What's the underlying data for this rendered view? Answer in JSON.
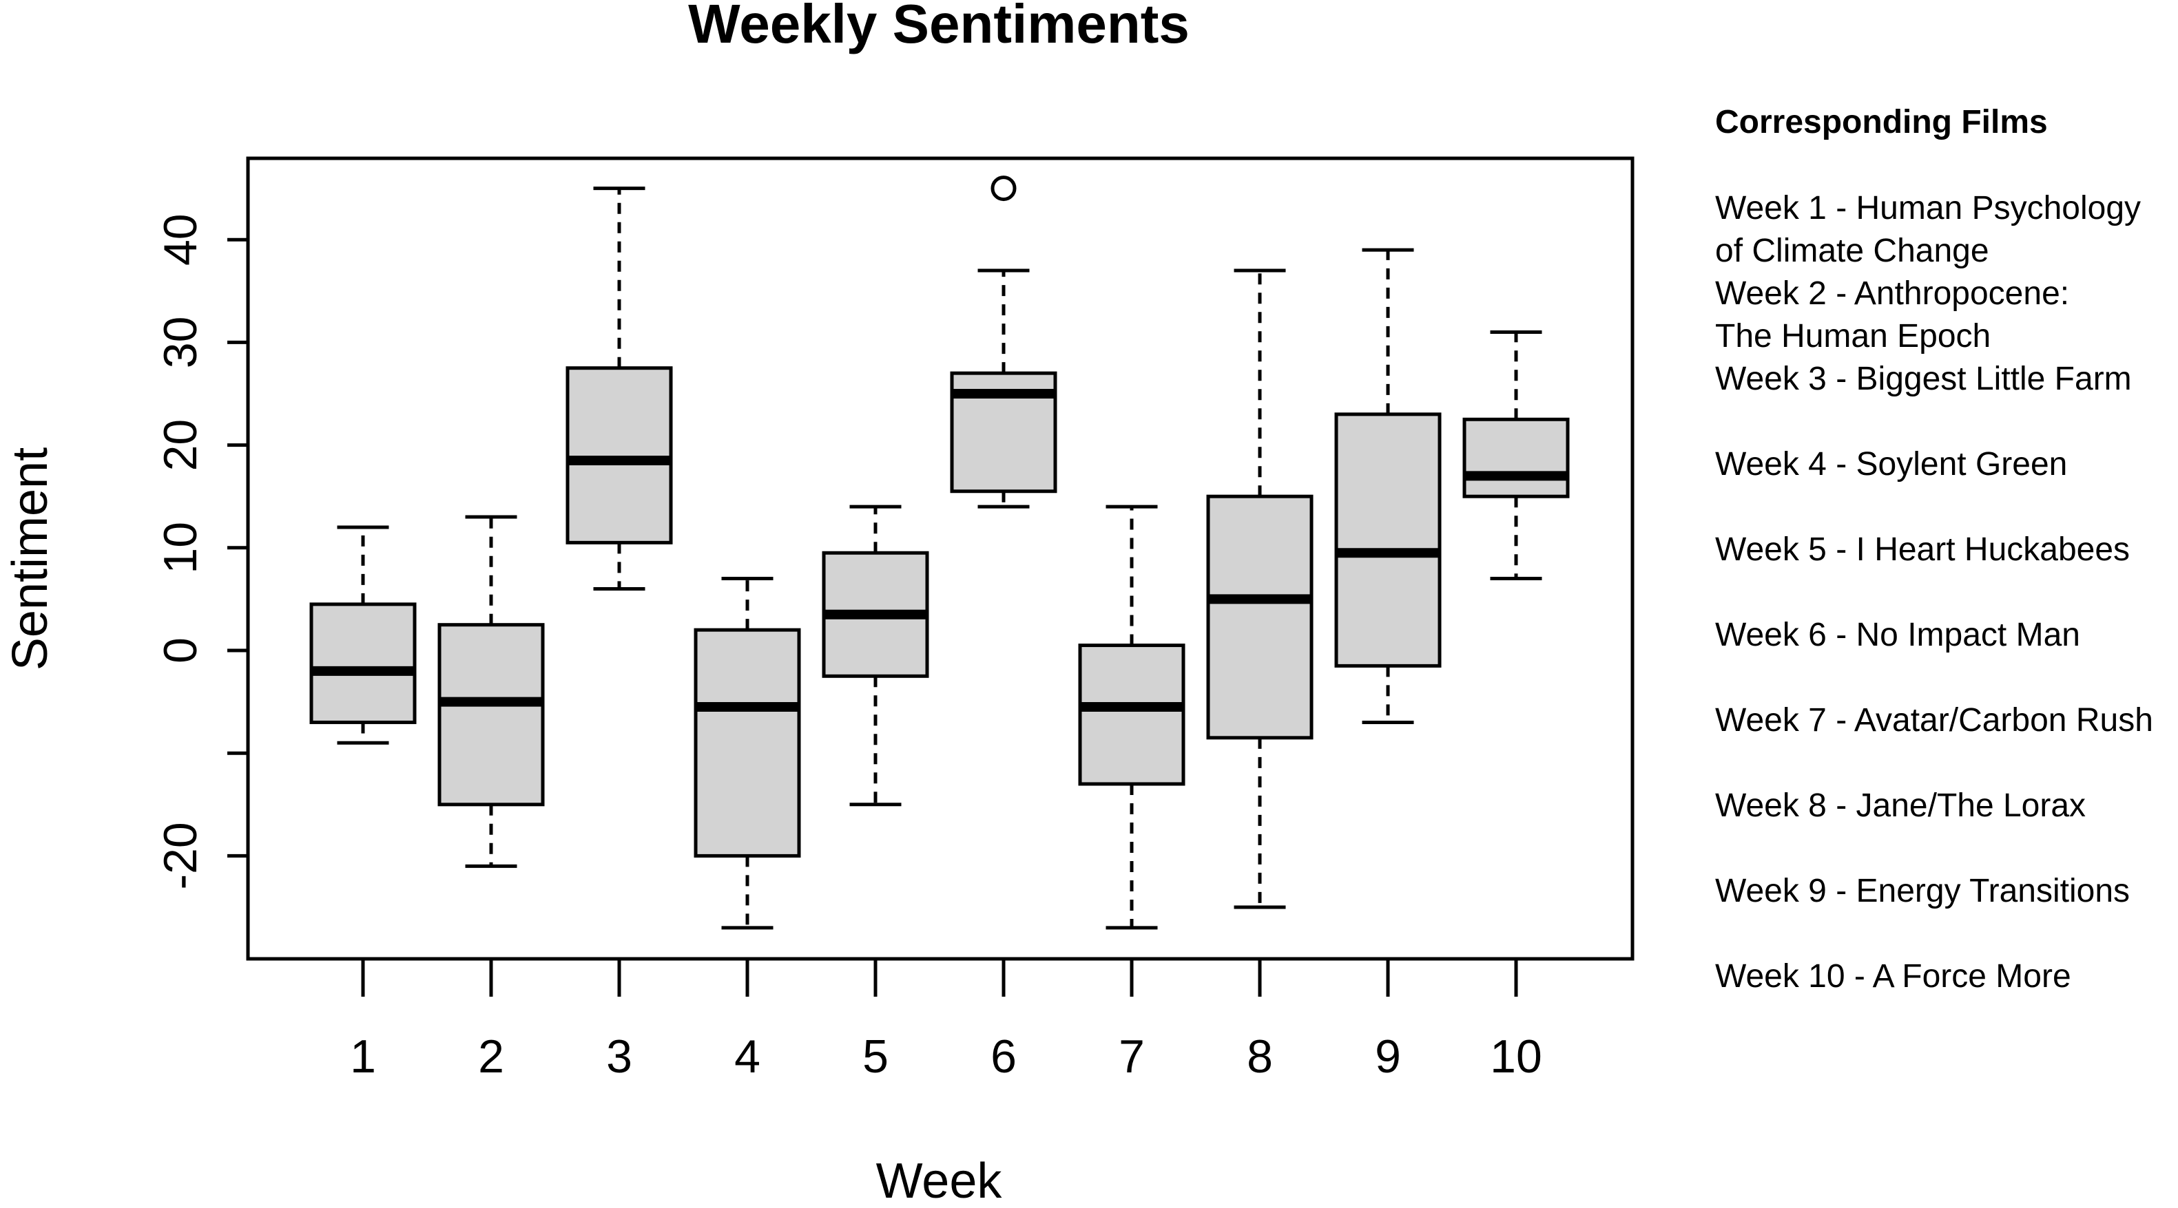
{
  "chart_data": {
    "type": "boxplot",
    "title": "Weekly Sentiments",
    "xlabel": "Week",
    "ylabel": "Sentiment",
    "ylim": [
      -30,
      48
    ],
    "yticks": [
      -20,
      -10,
      0,
      10,
      20,
      30,
      40
    ],
    "ytick_labels": [
      "-20",
      "",
      "0",
      "10",
      "20",
      "30",
      "40"
    ],
    "box_fill": "#d3d3d3",
    "line_color": "#000000",
    "boxes": [
      {
        "label": "1",
        "whisker_low": -9,
        "q1": -7,
        "median": -2,
        "q3": 4.5,
        "whisker_high": 12,
        "outliers": []
      },
      {
        "label": "2",
        "whisker_low": -21,
        "q1": -15,
        "median": -5,
        "q3": 2.5,
        "whisker_high": 13,
        "outliers": []
      },
      {
        "label": "3",
        "whisker_low": 6,
        "q1": 10.5,
        "median": 18.5,
        "q3": 27.5,
        "whisker_high": 45,
        "outliers": []
      },
      {
        "label": "4",
        "whisker_low": -27,
        "q1": -20,
        "median": -5.5,
        "q3": 2,
        "whisker_high": 7,
        "outliers": []
      },
      {
        "label": "5",
        "whisker_low": -15,
        "q1": -2.5,
        "median": 3.5,
        "q3": 9.5,
        "whisker_high": 14,
        "outliers": []
      },
      {
        "label": "6",
        "whisker_low": 14,
        "q1": 15.5,
        "median": 25,
        "q3": 27,
        "whisker_high": 37,
        "outliers": [
          45
        ]
      },
      {
        "label": "7",
        "whisker_low": -27,
        "q1": -13,
        "median": -5.5,
        "q3": 0.5,
        "whisker_high": 14,
        "outliers": []
      },
      {
        "label": "8",
        "whisker_low": -25,
        "q1": -8.5,
        "median": 5,
        "q3": 15,
        "whisker_high": 37,
        "outliers": []
      },
      {
        "label": "9",
        "whisker_low": -7,
        "q1": -1.5,
        "median": 9.5,
        "q3": 23,
        "whisker_high": 39,
        "outliers": []
      },
      {
        "label": "10",
        "whisker_low": 7,
        "q1": 15,
        "median": 17,
        "q3": 22.5,
        "whisker_high": 31,
        "outliers": []
      }
    ]
  },
  "legend": {
    "heading": "Corresponding Films",
    "entries": [
      [
        "Week 1 - Human Psychology",
        "of Climate Change"
      ],
      [
        "Week 2 - Anthropocene:",
        "The Human Epoch"
      ],
      [
        "Week 3 - Biggest Little Farm"
      ],
      [
        "Week 4 - Soylent Green"
      ],
      [
        "Week 5 - I Heart Huckabees"
      ],
      [
        "Week 6 - No Impact Man"
      ],
      [
        "Week 7 - Avatar/Carbon Rush"
      ],
      [
        "Week 8 - Jane/The Lorax"
      ],
      [
        "Week 9 - Energy Transitions"
      ],
      [
        "Week 10 - A Force More"
      ]
    ]
  }
}
